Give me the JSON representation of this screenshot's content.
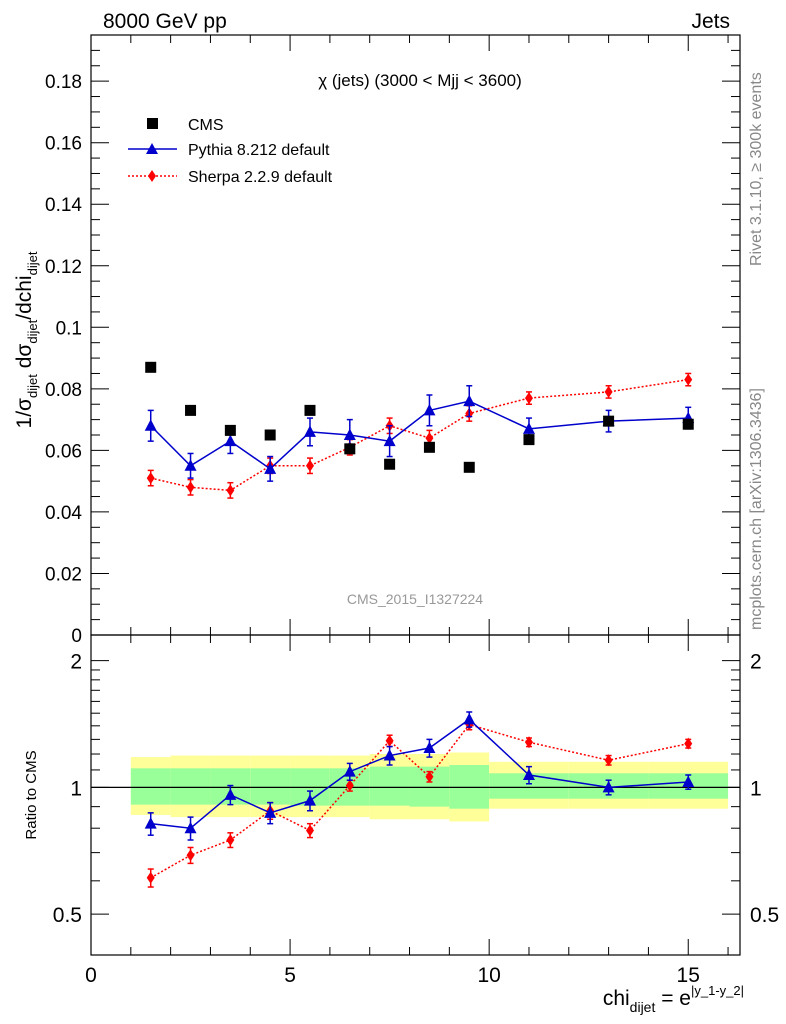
{
  "header": {
    "left": "8000 GeV pp",
    "right": "Jets"
  },
  "side": {
    "rivet": "Rivet 3.1.10, ≥ 300k events",
    "mcplots": "mcplots.cern.ch [arXiv:1306.3436]"
  },
  "watermark": "CMS_2015_I1327224",
  "colors": {
    "cms": "#000000",
    "pythia": "#0000cc",
    "sherpa": "#ff0000",
    "band_inner": "#99ff99",
    "band_outer": "#ffff99"
  },
  "chart_data": [
    {
      "type": "scatter",
      "title": "χ (jets) (3000 < Mjj < 3600)",
      "ylabel": "1/σ_dijet dσ_dijet/dchi_dijet",
      "xlim": [
        0,
        16.3
      ],
      "ylim": [
        0,
        0.195
      ],
      "yticks": [
        0,
        0.02,
        0.04,
        0.06,
        0.08,
        0.1,
        0.12,
        0.14,
        0.16,
        0.18
      ],
      "ytick_labels": [
        "0",
        "0.02",
        "0.04",
        "0.06",
        "0.08",
        "0.1",
        "0.12",
        "0.14",
        "0.16",
        "0.18"
      ],
      "x": [
        1.5,
        2.5,
        3.5,
        4.5,
        5.5,
        6.5,
        7.5,
        8.5,
        9.5,
        11,
        13,
        15
      ],
      "series": [
        {
          "name": "CMS",
          "marker": "square",
          "values": [
            0.087,
            0.073,
            0.0665,
            0.065,
            0.073,
            0.0605,
            0.0555,
            0.061,
            0.0545,
            0.0635,
            0.0695,
            0.0685
          ],
          "errors": [
            0.001,
            0.001,
            0.001,
            0.001,
            0.001,
            0.001,
            0.001,
            0.001,
            0.001,
            0.001,
            0.001,
            0.001
          ]
        },
        {
          "name": "Pythia 8.212 default",
          "marker": "triangle",
          "line": "solid",
          "values": [
            0.068,
            0.055,
            0.063,
            0.054,
            0.066,
            0.065,
            0.063,
            0.073,
            0.076,
            0.067,
            0.0695,
            0.0705
          ],
          "errors": [
            0.005,
            0.004,
            0.004,
            0.004,
            0.0045,
            0.005,
            0.005,
            0.005,
            0.005,
            0.0035,
            0.0035,
            0.0035
          ]
        },
        {
          "name": "Sherpa 2.2.9 default",
          "marker": "diamond",
          "line": "dotted",
          "values": [
            0.051,
            0.048,
            0.047,
            0.055,
            0.055,
            0.061,
            0.068,
            0.064,
            0.072,
            0.077,
            0.079,
            0.083
          ],
          "errors": [
            0.0025,
            0.0025,
            0.0025,
            0.0025,
            0.0025,
            0.0025,
            0.0025,
            0.0025,
            0.0025,
            0.002,
            0.002,
            0.002
          ]
        }
      ]
    },
    {
      "type": "scatter",
      "ylabel": "Ratio to CMS",
      "xlabel": "chi_dijet = e^|y_1-y_2|",
      "xlim": [
        0,
        16.3
      ],
      "ylim": [
        0.4,
        2.3
      ],
      "xticks": [
        0,
        5,
        10,
        15
      ],
      "xtick_labels": [
        "0",
        "5",
        "10",
        "15"
      ],
      "yticks": [
        0.5,
        1,
        2
      ],
      "ytick_labels": [
        "0.5",
        "1",
        "2"
      ],
      "x": [
        1.5,
        2.5,
        3.5,
        4.5,
        5.5,
        6.5,
        7.5,
        8.5,
        9.5,
        11,
        13,
        15
      ],
      "band_bins": [
        [
          1,
          2
        ],
        [
          2,
          3
        ],
        [
          3,
          4
        ],
        [
          4,
          5
        ],
        [
          5,
          6
        ],
        [
          6,
          7
        ],
        [
          7,
          8
        ],
        [
          8,
          9
        ],
        [
          9,
          10
        ],
        [
          10,
          12
        ],
        [
          12,
          14
        ],
        [
          14,
          16
        ]
      ],
      "band_inner": [
        [
          0.91,
          1.11
        ],
        [
          0.91,
          1.11
        ],
        [
          0.91,
          1.11
        ],
        [
          0.91,
          1.11
        ],
        [
          0.905,
          1.11
        ],
        [
          0.905,
          1.11
        ],
        [
          0.905,
          1.12
        ],
        [
          0.9,
          1.12
        ],
        [
          0.89,
          1.13
        ],
        [
          0.94,
          1.08
        ],
        [
          0.94,
          1.08
        ],
        [
          0.94,
          1.08
        ]
      ],
      "band_outer": [
        [
          0.86,
          1.18
        ],
        [
          0.85,
          1.19
        ],
        [
          0.85,
          1.19
        ],
        [
          0.85,
          1.19
        ],
        [
          0.85,
          1.19
        ],
        [
          0.85,
          1.19
        ],
        [
          0.84,
          1.2
        ],
        [
          0.84,
          1.2
        ],
        [
          0.83,
          1.21
        ],
        [
          0.89,
          1.15
        ],
        [
          0.89,
          1.15
        ],
        [
          0.89,
          1.15
        ]
      ],
      "series": [
        {
          "name": "Pythia 8.212 default",
          "values": [
            0.82,
            0.8,
            0.96,
            0.87,
            0.93,
            1.09,
            1.19,
            1.24,
            1.45,
            1.07,
            1.0,
            1.03
          ],
          "errors": [
            0.05,
            0.05,
            0.05,
            0.05,
            0.05,
            0.05,
            0.06,
            0.06,
            0.06,
            0.05,
            0.04,
            0.04
          ]
        },
        {
          "name": "Sherpa 2.2.9 default",
          "values": [
            0.61,
            0.69,
            0.75,
            0.88,
            0.79,
            1.01,
            1.29,
            1.06,
            1.41,
            1.28,
            1.16,
            1.27
          ],
          "errors": [
            0.03,
            0.03,
            0.03,
            0.04,
            0.03,
            0.03,
            0.04,
            0.03,
            0.04,
            0.03,
            0.03,
            0.03
          ]
        }
      ]
    }
  ]
}
